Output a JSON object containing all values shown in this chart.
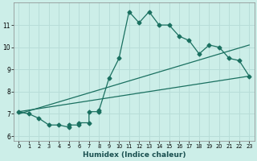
{
  "xlabel": "Humidex (Indice chaleur)",
  "bg_color": "#cceee8",
  "line_color": "#1a7060",
  "grid_color": "#b8ddd8",
  "x_data": [
    0,
    1,
    2,
    3,
    4,
    5,
    5,
    6,
    6,
    7,
    7,
    8,
    8,
    9,
    10,
    11,
    12,
    13,
    14,
    15,
    16,
    17,
    18,
    19,
    20,
    21,
    22,
    23
  ],
  "series1": [
    7.1,
    7.0,
    6.8,
    6.5,
    6.5,
    6.4,
    6.5,
    6.5,
    6.6,
    6.6,
    7.1,
    7.1,
    7.15,
    8.6,
    9.5,
    11.6,
    11.1,
    11.6,
    11.0,
    11.0,
    10.5,
    10.3,
    9.7,
    10.1,
    10.0,
    9.5,
    9.4,
    8.7
  ],
  "line2_x": [
    0,
    23
  ],
  "line2_y": [
    7.1,
    8.7
  ],
  "line3_x": [
    0,
    23
  ],
  "line3_y": [
    7.0,
    10.1
  ],
  "xlim": [
    -0.5,
    23.5
  ],
  "ylim": [
    5.8,
    12.0
  ],
  "yticks": [
    6,
    7,
    8,
    9,
    10,
    11
  ],
  "xticks": [
    0,
    1,
    2,
    3,
    4,
    5,
    6,
    7,
    8,
    9,
    10,
    11,
    12,
    13,
    14,
    15,
    16,
    17,
    18,
    19,
    20,
    21,
    22,
    23
  ]
}
